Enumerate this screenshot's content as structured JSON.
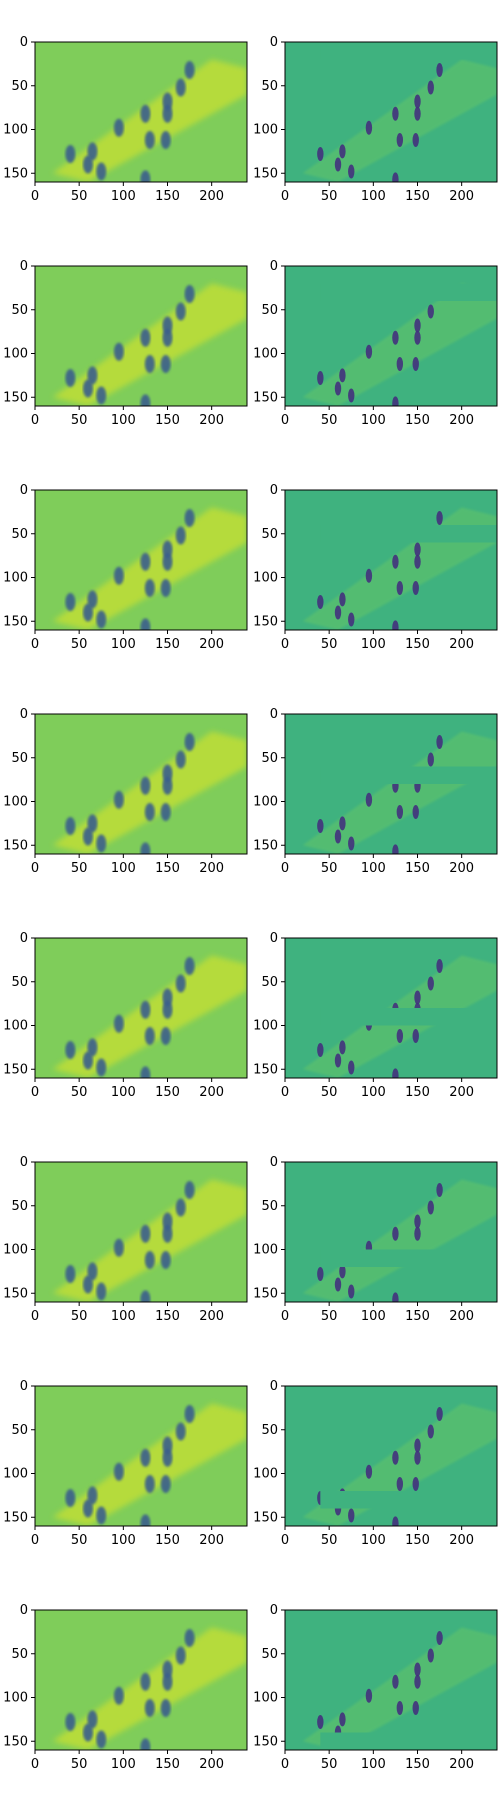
{
  "figure": {
    "colormap": "viridis",
    "background_color": "#ffffff",
    "colors": {
      "left_field": "#7fcd5a",
      "left_bright": "#c8e030",
      "left_dark": "#3a5f8c",
      "right_field": "#3fb27f",
      "right_light": "#7ad15a",
      "right_dark": "#43317d"
    }
  },
  "chart_data": {
    "type": "heatmap",
    "layout": "8 rows x 2 columns of image panels",
    "image_shape": [
      160,
      240
    ],
    "axes_common": {
      "x_range": [
        0,
        240
      ],
      "y_range": [
        160,
        0
      ],
      "x_ticks": [
        0,
        50,
        100,
        150,
        200
      ],
      "y_ticks": [
        0,
        50,
        100,
        150
      ],
      "y_inverted": true,
      "grid": false,
      "title": "",
      "xlabel": "",
      "ylabel": ""
    },
    "columns": [
      "left",
      "right"
    ],
    "rows": [
      {
        "row": 1,
        "right_masked_band_y": [
          5,
          20
        ]
      },
      {
        "row": 2,
        "right_masked_band_y": [
          20,
          40
        ]
      },
      {
        "row": 3,
        "right_masked_band_y": [
          40,
          60
        ]
      },
      {
        "row": 4,
        "right_masked_band_y": [
          60,
          80
        ]
      },
      {
        "row": 5,
        "right_masked_band_y": [
          80,
          100
        ]
      },
      {
        "row": 6,
        "right_masked_band_y": [
          100,
          120
        ]
      },
      {
        "row": 7,
        "right_masked_band_y": [
          120,
          140
        ]
      },
      {
        "row": 8,
        "right_masked_band_y": [
          140,
          160
        ]
      }
    ],
    "figures": [
      {
        "x": 175,
        "y": 32
      },
      {
        "x": 165,
        "y": 52
      },
      {
        "x": 150,
        "y": 68
      },
      {
        "x": 125,
        "y": 82
      },
      {
        "x": 150,
        "y": 82
      },
      {
        "x": 130,
        "y": 112
      },
      {
        "x": 148,
        "y": 112
      },
      {
        "x": 95,
        "y": 98
      },
      {
        "x": 65,
        "y": 125
      },
      {
        "x": 40,
        "y": 128
      },
      {
        "x": 60,
        "y": 140
      },
      {
        "x": 75,
        "y": 148
      },
      {
        "x": 125,
        "y": 157
      }
    ]
  }
}
